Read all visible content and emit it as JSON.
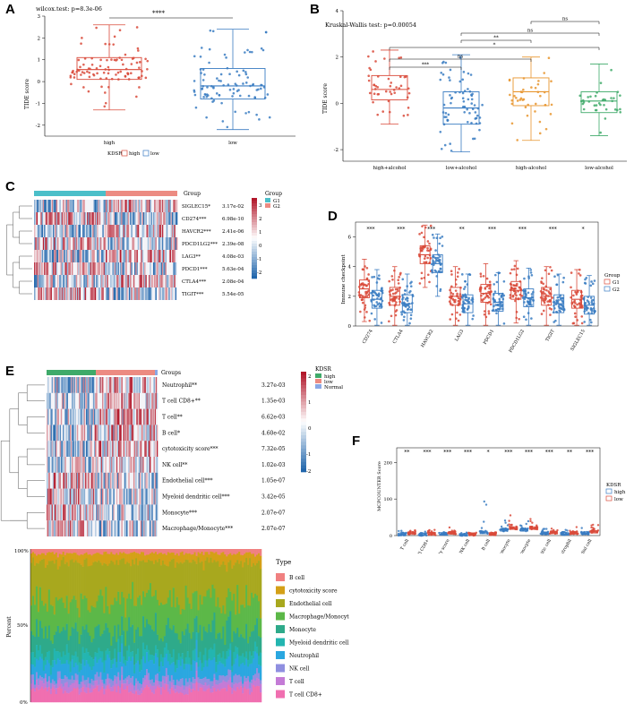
{
  "panel_labels": [
    "A",
    "B",
    "C",
    "D",
    "E",
    "F"
  ],
  "colors": {
    "red": "#d94a3a",
    "blue": "#3a7cc2",
    "orange": "#e8952e",
    "green": "#3faa6a",
    "teal": "#4bbfc9",
    "salmon": "#ec8b82"
  },
  "panelA": {
    "title": "wilcox.test: p=8.3e-06",
    "ylabel": "TIDE score",
    "sig": "****",
    "xlabel": "KDSR",
    "legend": [
      "high",
      "low"
    ],
    "chart_data": {
      "type": "box",
      "title": "wilcox.test: p=8.3e-06",
      "xlabel": "KDSR",
      "ylabel": "TIDE score",
      "categories": [
        "high",
        "low"
      ],
      "ylim": [
        -2.5,
        3
      ],
      "yticks": [
        -2,
        -1,
        0,
        1,
        2,
        3
      ],
      "boxes": [
        {
          "name": "high",
          "min": -1.3,
          "q1": 0.1,
          "median": 0.55,
          "q3": 1.1,
          "max": 2.6
        },
        {
          "name": "low",
          "min": -2.2,
          "q1": -0.8,
          "median": -0.2,
          "q3": 0.6,
          "max": 2.4
        }
      ]
    }
  },
  "panelB": {
    "title": "Kruskal-Wallis test: p=0.00054",
    "ylabel": "TIDE score",
    "chart_data": {
      "type": "box",
      "title": "Kruskal-Wallis test: p=0.00054",
      "ylabel": "TIDE score",
      "categories": [
        "high+alcohol",
        "low+alcohol",
        "high-alcohol",
        "low-alcohol"
      ],
      "ylim": [
        -2.5,
        4
      ],
      "yticks": [
        -2,
        0,
        2,
        4
      ],
      "boxes": [
        {
          "name": "high+alcohol",
          "min": -0.9,
          "q1": 0.15,
          "median": 0.6,
          "q3": 1.2,
          "max": 2.3
        },
        {
          "name": "low+alcohol",
          "min": -2.1,
          "q1": -0.9,
          "median": -0.2,
          "q3": 0.5,
          "max": 2.1
        },
        {
          "name": "high-alcohol",
          "min": -1.6,
          "q1": -0.1,
          "median": 0.5,
          "q3": 1.1,
          "max": 2.0
        },
        {
          "name": "low-alcohol",
          "min": -1.4,
          "q1": -0.4,
          "median": 0.1,
          "q3": 0.5,
          "max": 1.7
        }
      ],
      "comparisons": [
        {
          "a": 0,
          "b": 1,
          "label": "***"
        },
        {
          "a": 0,
          "b": 2,
          "label": "ns"
        },
        {
          "a": 0,
          "b": 3,
          "label": "*"
        },
        {
          "a": 1,
          "b": 2,
          "label": "**"
        },
        {
          "a": 1,
          "b": 3,
          "label": "ns"
        },
        {
          "a": 2,
          "b": 3,
          "label": "ns"
        }
      ]
    }
  },
  "panelC": {
    "group_title": "Group",
    "legend_title": "Group",
    "legend": [
      "G1",
      "G2"
    ],
    "scale_ticks": [
      "3",
      "2",
      "1",
      "0",
      "-1",
      "-2"
    ],
    "chart_data": {
      "type": "heatmap",
      "rows": [
        "SIGLEC15*",
        "CD274***",
        "HAVCR2***",
        "PDCD1LG2***",
        "LAG3**",
        "PDCD1***",
        "CTLA4***",
        "TIGIT***"
      ],
      "pvalues": [
        "3.17e-02",
        "6.98e-10",
        "2.41e-06",
        "2.39e-08",
        "4.08e-03",
        "5.63e-04",
        "2.08e-04",
        "5.54e-05"
      ],
      "groups": [
        "G1",
        "G2"
      ]
    }
  },
  "panelD": {
    "ylabel": "Immune checkpoint",
    "legend_title": "Group",
    "legend": [
      "G1",
      "G2"
    ],
    "chart_data": {
      "type": "box",
      "ylabel": "Immune checkpoint",
      "categories": [
        "CD274",
        "CTLA4",
        "HAVCR2",
        "LAG3",
        "PDCD1",
        "PDCD1LG2",
        "TIGIT",
        "SIGLEC15"
      ],
      "significance": [
        "***",
        "***",
        "***",
        "**",
        "***",
        "***",
        "***",
        "*"
      ],
      "ylim": [
        0,
        7
      ],
      "yticks": [
        0,
        2,
        4,
        6
      ],
      "series": [
        {
          "name": "G1",
          "medians": [
            2.5,
            2.0,
            4.8,
            2.0,
            2.2,
            2.4,
            2.0,
            1.8
          ]
        },
        {
          "name": "G2",
          "medians": [
            1.8,
            1.5,
            4.2,
            1.5,
            1.6,
            1.9,
            1.5,
            1.4
          ]
        }
      ]
    }
  },
  "panelE": {
    "group_title": "Groups",
    "legend_title": "KDSR",
    "legend": [
      "high",
      "low",
      "Normal"
    ],
    "scale_ticks": [
      "2",
      "1",
      "0",
      "-1",
      "-2"
    ],
    "chart_data": {
      "type": "heatmap",
      "rows": [
        "Neutrophil**",
        "T cell CD8+**",
        "T cell**",
        "B cell*",
        "cytotoxicity score***",
        "NK cell**",
        "Endothelial cell***",
        "Myeloid dendritic cell***",
        "Monocyte***",
        "Macrophage/Monocyte***"
      ],
      "pvalues": [
        "3.27e-03",
        "1.35e-03",
        "6.62e-03",
        "4.60e-02",
        "7.32e-05",
        "1.02e-03",
        "1.05e-07",
        "3.42e-05",
        "2.07e-07",
        "2.07e-07"
      ],
      "groups": [
        "high",
        "low",
        "Normal"
      ]
    }
  },
  "panelStack": {
    "ylabel": "Percent",
    "legend_title": "Type",
    "yticks": [
      "100%",
      "50%",
      "0%"
    ],
    "chart_data": {
      "type": "area",
      "ylabel": "Percent",
      "series": [
        {
          "name": "B cell",
          "color": "#f08080",
          "share": 0.03
        },
        {
          "name": "cytotoxicity score",
          "color": "#d4a017",
          "share": 0.06
        },
        {
          "name": "Endothelial cell",
          "color": "#a8a81e",
          "share": 0.25
        },
        {
          "name": "Macrophage/Monocyte",
          "color": "#5cb848",
          "share": 0.2
        },
        {
          "name": "Monocyte",
          "color": "#2eaa8a",
          "share": 0.14
        },
        {
          "name": "Myeloid dendritic cell",
          "color": "#23b5b0",
          "share": 0.06
        },
        {
          "name": "Neutrophil",
          "color": "#2aa7e0",
          "share": 0.1
        },
        {
          "name": "NK cell",
          "color": "#8f8fe0",
          "share": 0.04
        },
        {
          "name": "T cell",
          "color": "#c47bd6",
          "share": 0.04
        },
        {
          "name": "T cell CD8+",
          "color": "#f06fb0",
          "share": 0.08
        }
      ]
    }
  },
  "panelF": {
    "ylabel": "MCPCOUNTER Score",
    "legend_title": "KDSR",
    "legend": [
      "high",
      "low"
    ],
    "chart_data": {
      "type": "box",
      "ylabel": "MCPCOUNTER Score",
      "categories": [
        "T cell",
        "T cell CD8+",
        "cytotoxicity score",
        "NK cell",
        "B cell",
        "Monocyte",
        "Macrophage/Monocyte",
        "Myeloid dendritic cell",
        "Neutrophil",
        "Endothelial cell"
      ],
      "significance": [
        "**",
        "***",
        "***",
        "***",
        "*",
        "***",
        "***",
        "***",
        "**",
        "***"
      ],
      "ylim": [
        0,
        240
      ],
      "yticks": [
        0,
        100,
        200
      ],
      "series": [
        {
          "name": "high",
          "medians": [
            3,
            2,
            4,
            1,
            8,
            15,
            15,
            6,
            4,
            6
          ]
        },
        {
          "name": "low",
          "medians": [
            6,
            4,
            7,
            2,
            4,
            20,
            20,
            8,
            7,
            10
          ]
        }
      ]
    }
  }
}
